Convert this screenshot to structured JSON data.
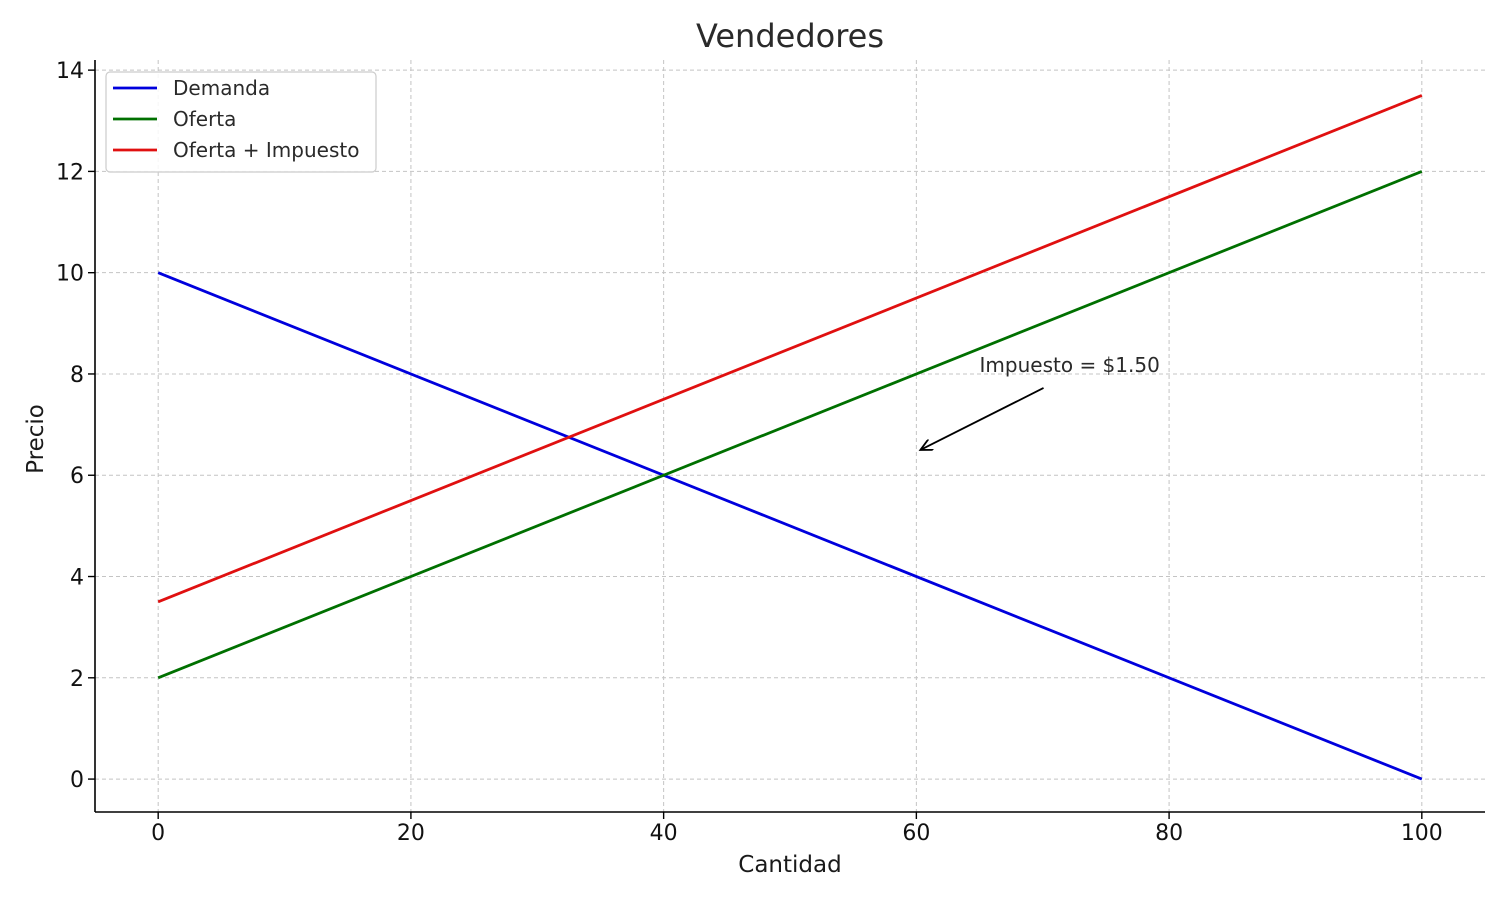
{
  "chart_data": {
    "type": "line",
    "title": "Vendedores",
    "xlabel": "Cantidad",
    "ylabel": "Precio",
    "xlim": [
      -5,
      105
    ],
    "ylim": [
      -0.65,
      14.2
    ],
    "xticks": [
      0,
      20,
      40,
      60,
      80,
      100
    ],
    "yticks": [
      0,
      2,
      4,
      6,
      8,
      10,
      12,
      14
    ],
    "grid": true,
    "legend_position": "top-left",
    "series": [
      {
        "name": "Demanda",
        "color": "#0000dd",
        "x": [
          0,
          100
        ],
        "y": [
          10,
          0
        ]
      },
      {
        "name": "Oferta",
        "color": "#007000",
        "x": [
          0,
          100
        ],
        "y": [
          2,
          12
        ]
      },
      {
        "name": "Oferta + Impuesto",
        "color": "#e01010",
        "x": [
          0,
          100
        ],
        "y": [
          3.5,
          13.5
        ]
      }
    ],
    "annotations": [
      {
        "text": "Impuesto = $1.50",
        "text_x": 65,
        "text_y": 8.0,
        "arrow_to_x": 60,
        "arrow_to_y": 6.5
      }
    ]
  }
}
